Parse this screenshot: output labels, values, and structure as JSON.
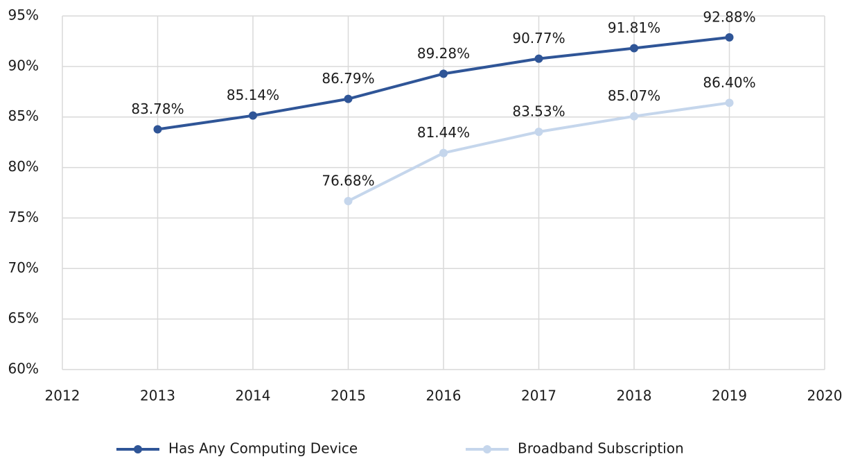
{
  "chart_data": {
    "type": "line",
    "x": [
      2013,
      2014,
      2015,
      2016,
      2017,
      2018,
      2019
    ],
    "series": [
      {
        "name": "Has Any Computing Device",
        "color": "#2f5597",
        "values": [
          83.78,
          85.14,
          86.79,
          89.28,
          90.77,
          91.81,
          92.88
        ],
        "value_labels": [
          "83.78%",
          "85.14%",
          "86.79%",
          "89.28%",
          "90.77%",
          "91.81%",
          "92.88%"
        ]
      },
      {
        "name": "Broadband Subscription",
        "color": "#c5d6ec",
        "values": [
          null,
          null,
          76.68,
          81.44,
          83.53,
          85.07,
          86.4
        ],
        "value_labels": [
          null,
          null,
          "76.68%",
          "81.44%",
          "83.53%",
          "85.07%",
          "86.40%"
        ]
      }
    ],
    "xlim": [
      2012,
      2020
    ],
    "xticks": [
      2012,
      2013,
      2014,
      2015,
      2016,
      2017,
      2018,
      2019,
      2020
    ],
    "ylim": [
      60,
      95
    ],
    "yticks": [
      {
        "value": 60,
        "label": "60%"
      },
      {
        "value": 65,
        "label": "65%"
      },
      {
        "value": 70,
        "label": "70%"
      },
      {
        "value": 75,
        "label": "75%"
      },
      {
        "value": 80,
        "label": "80%"
      },
      {
        "value": 85,
        "label": "85%"
      },
      {
        "value": 90,
        "label": "90%"
      },
      {
        "value": 95,
        "label": "95%"
      }
    ],
    "grid": true,
    "legend": "bottom"
  }
}
